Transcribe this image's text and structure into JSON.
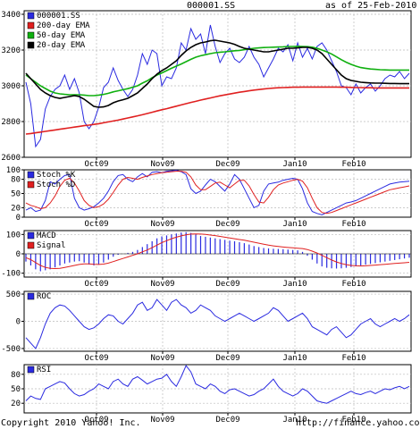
{
  "header": {
    "symbol": "000001.SS",
    "as_of": "as of 25-Feb-2010"
  },
  "footer": {
    "copyright": "Copyright 2010 Yahoo! Inc.",
    "url": "http://finance.yahoo.com/"
  },
  "colors": {
    "price": "#2a2ae0",
    "ema200": "#e02020",
    "ema50": "#10b010",
    "ema20": "#000000",
    "stoch_k": "#2a2ae0",
    "stoch_d": "#e02020",
    "macd": "#2a2ae0",
    "signal": "#e02020",
    "roc": "#2a2ae0",
    "rsi": "#2a2ae0",
    "grid": "#bbbbbb"
  },
  "chart_data": [
    {
      "type": "line",
      "panel": "price",
      "x_tick_labels": [
        "Oct09",
        "Nov09",
        "Dec09",
        "Jan10",
        "Feb10"
      ],
      "y_ticks": [
        2600,
        2800,
        3000,
        3200,
        3400
      ],
      "ylim": [
        2600,
        3420
      ],
      "series": [
        {
          "name": "000001.SS",
          "color_key": "price",
          "values": [
            3020,
            2900,
            2660,
            2700,
            2870,
            2940,
            2980,
            3000,
            3060,
            2980,
            3040,
            2960,
            2800,
            2760,
            2800,
            2880,
            2990,
            3020,
            3100,
            3030,
            2980,
            2940,
            2980,
            3060,
            3180,
            3120,
            3200,
            3180,
            3000,
            3050,
            3040,
            3100,
            3240,
            3200,
            3320,
            3260,
            3290,
            3180,
            3340,
            3220,
            3130,
            3180,
            3210,
            3150,
            3130,
            3160,
            3220,
            3160,
            3120,
            3050,
            3100,
            3150,
            3210,
            3190,
            3230,
            3140,
            3240,
            3160,
            3210,
            3150,
            3220,
            3240,
            3200,
            3140,
            3080,
            3000,
            2990,
            2950,
            3010,
            2960,
            2990,
            3010,
            2970,
            3000,
            3040,
            3060,
            3050,
            3080,
            3040,
            3070
          ]
        },
        {
          "name": "200-day EMA",
          "color_key": "ema200",
          "values": [
            2730,
            2733,
            2737,
            2741,
            2745,
            2749,
            2753,
            2757,
            2761,
            2765,
            2769,
            2773,
            2777,
            2780,
            2784,
            2788,
            2793,
            2798,
            2803,
            2808,
            2814,
            2820,
            2826,
            2832,
            2838,
            2845,
            2852,
            2859,
            2866,
            2872,
            2879,
            2886,
            2893,
            2900,
            2907,
            2913,
            2920,
            2926,
            2932,
            2938,
            2944,
            2949,
            2954,
            2959,
            2964,
            2968,
            2972,
            2976,
            2979,
            2982,
            2985,
            2987,
            2989,
            2990,
            2991,
            2992,
            2992,
            2993,
            2993,
            2993,
            2993,
            2993,
            2993,
            2993,
            2993,
            2992,
            2992,
            2991,
            2990,
            2990,
            2989,
            2989,
            2988,
            2988,
            2988,
            2988,
            2988,
            2988,
            2988,
            2988
          ]
        },
        {
          "name": "50-day EMA",
          "color_key": "ema50",
          "values": [
            3060,
            3040,
            3020,
            3000,
            2985,
            2970,
            2960,
            2955,
            2952,
            2950,
            2950,
            2950,
            2948,
            2945,
            2945,
            2948,
            2952,
            2958,
            2966,
            2972,
            2978,
            2984,
            2992,
            3000,
            3015,
            3028,
            3045,
            3060,
            3072,
            3085,
            3098,
            3110,
            3122,
            3135,
            3148,
            3160,
            3168,
            3174,
            3180,
            3185,
            3188,
            3190,
            3193,
            3196,
            3198,
            3202,
            3206,
            3210,
            3212,
            3214,
            3215,
            3216,
            3217,
            3218,
            3220,
            3220,
            3221,
            3220,
            3219,
            3216,
            3210,
            3200,
            3190,
            3178,
            3162,
            3146,
            3132,
            3120,
            3110,
            3102,
            3098,
            3094,
            3092,
            3090,
            3089,
            3088,
            3088,
            3088,
            3088,
            3088
          ]
        },
        {
          "name": "20-day EMA",
          "color_key": "ema20",
          "values": [
            3070,
            3040,
            3010,
            2980,
            2960,
            2945,
            2935,
            2930,
            2935,
            2940,
            2945,
            2940,
            2925,
            2905,
            2885,
            2880,
            2882,
            2890,
            2905,
            2915,
            2922,
            2930,
            2945,
            2960,
            2985,
            3010,
            3040,
            3065,
            3085,
            3100,
            3120,
            3140,
            3170,
            3195,
            3215,
            3230,
            3240,
            3245,
            3252,
            3255,
            3250,
            3245,
            3240,
            3232,
            3220,
            3210,
            3205,
            3200,
            3195,
            3190,
            3190,
            3195,
            3200,
            3205,
            3210,
            3210,
            3212,
            3215,
            3215,
            3210,
            3200,
            3180,
            3150,
            3120,
            3090,
            3060,
            3040,
            3030,
            3025,
            3020,
            3018,
            3016,
            3015,
            3015,
            3014,
            3013,
            3013,
            3012,
            3012,
            3012
          ]
        }
      ]
    },
    {
      "type": "line",
      "panel": "stochastic",
      "x_tick_labels": [
        "Oct09",
        "Nov09",
        "Dec09",
        "Jan10",
        "Feb10"
      ],
      "y_ticks": [
        0,
        20,
        50,
        80,
        100
      ],
      "ylim": [
        0,
        100
      ],
      "series": [
        {
          "name": "Stoch %K",
          "color_key": "stoch_k",
          "values": [
            15,
            20,
            12,
            15,
            35,
            75,
            70,
            80,
            88,
            90,
            40,
            20,
            15,
            18,
            22,
            30,
            40,
            55,
            75,
            88,
            90,
            80,
            75,
            85,
            92,
            85,
            95,
            96,
            94,
            97,
            98,
            99,
            96,
            90,
            60,
            50,
            55,
            68,
            80,
            75,
            65,
            55,
            70,
            90,
            80,
            60,
            40,
            20,
            25,
            55,
            70,
            72,
            74,
            78,
            80,
            82,
            80,
            60,
            30,
            12,
            8,
            5,
            10,
            15,
            20,
            25,
            30,
            32,
            35,
            40,
            45,
            50,
            55,
            60,
            65,
            70,
            72,
            74,
            75,
            76
          ]
        },
        {
          "name": "Stoch %D",
          "color_key": "stoch_d",
          "values": [
            30,
            25,
            22,
            18,
            20,
            30,
            45,
            65,
            78,
            82,
            72,
            55,
            35,
            25,
            20,
            22,
            28,
            38,
            52,
            68,
            80,
            84,
            82,
            80,
            84,
            87,
            90,
            92,
            94,
            95,
            96,
            97,
            97,
            95,
            85,
            68,
            58,
            58,
            65,
            72,
            74,
            68,
            62,
            70,
            78,
            78,
            66,
            48,
            32,
            30,
            42,
            58,
            68,
            72,
            75,
            78,
            80,
            76,
            62,
            40,
            20,
            10,
            8,
            10,
            14,
            18,
            22,
            26,
            30,
            34,
            38,
            42,
            46,
            50,
            54,
            58,
            60,
            62,
            64,
            66
          ]
        }
      ]
    },
    {
      "type": "line",
      "panel": "macd",
      "y_ticks": [
        -100,
        0,
        100
      ],
      "ylim": [
        -120,
        120
      ],
      "series": [
        {
          "name": "MACD",
          "color_key": "macd",
          "values": [
            -40,
            -60,
            -80,
            -90,
            -85,
            -80,
            -70,
            -60,
            -50,
            -45,
            -40,
            -38,
            -45,
            -55,
            -60,
            -55,
            -45,
            -30,
            -15,
            -5,
            0,
            5,
            10,
            20,
            35,
            50,
            65,
            80,
            90,
            95,
            100,
            105,
            110,
            112,
            108,
            100,
            92,
            88,
            84,
            80,
            76,
            72,
            68,
            65,
            60,
            55,
            48,
            40,
            35,
            30,
            28,
            26,
            25,
            24,
            22,
            20,
            18,
            10,
            -10,
            -30,
            -50,
            -65,
            -72,
            -75,
            -76,
            -75,
            -72,
            -68,
            -64,
            -60,
            -56,
            -52,
            -48,
            -44,
            -40,
            -36,
            -32,
            -28,
            -24,
            -20
          ]
        },
        {
          "name": "Signal",
          "color_key": "signal",
          "values": [
            -20,
            -30,
            -45,
            -60,
            -70,
            -75,
            -76,
            -75,
            -70,
            -65,
            -60,
            -55,
            -52,
            -52,
            -54,
            -55,
            -53,
            -48,
            -40,
            -32,
            -24,
            -16,
            -8,
            0,
            10,
            20,
            32,
            45,
            58,
            68,
            78,
            86,
            93,
            98,
            102,
            103,
            102,
            100,
            97,
            94,
            90,
            86,
            82,
            78,
            74,
            70,
            65,
            60,
            55,
            50,
            45,
            41,
            38,
            35,
            33,
            31,
            29,
            27,
            22,
            14,
            4,
            -8,
            -20,
            -32,
            -42,
            -50,
            -56,
            -60,
            -62,
            -63,
            -62,
            -60,
            -58,
            -56,
            -54,
            -52,
            -50,
            -48,
            -46,
            -44
          ]
        }
      ]
    },
    {
      "type": "line",
      "panel": "roc",
      "y_ticks": [
        -500,
        0,
        500
      ],
      "ylim": [
        -550,
        550
      ],
      "series": [
        {
          "name": "ROC",
          "color_key": "roc",
          "values": [
            -300,
            -400,
            -500,
            -300,
            -50,
            150,
            250,
            300,
            280,
            200,
            100,
            0,
            -100,
            -150,
            -120,
            -50,
            50,
            120,
            100,
            0,
            -50,
            50,
            150,
            300,
            350,
            200,
            250,
            400,
            300,
            200,
            350,
            400,
            300,
            250,
            150,
            200,
            300,
            250,
            200,
            100,
            50,
            0,
            50,
            100,
            150,
            100,
            50,
            0,
            50,
            100,
            150,
            250,
            200,
            100,
            0,
            50,
            100,
            150,
            50,
            -100,
            -150,
            -200,
            -250,
            -150,
            -100,
            -200,
            -300,
            -250,
            -150,
            -50,
            0,
            50,
            -50,
            -100,
            -50,
            0,
            50,
            0,
            50,
            120
          ]
        }
      ]
    },
    {
      "type": "line",
      "panel": "rsi",
      "y_ticks": [
        20,
        50,
        80
      ],
      "ylim": [
        0,
        100
      ],
      "series": [
        {
          "name": "RSI",
          "color_key": "rsi",
          "values": [
            25,
            35,
            30,
            28,
            50,
            55,
            60,
            65,
            62,
            50,
            40,
            35,
            38,
            45,
            50,
            60,
            55,
            50,
            65,
            70,
            60,
            55,
            70,
            75,
            68,
            60,
            65,
            70,
            72,
            80,
            65,
            55,
            75,
            98,
            85,
            60,
            55,
            50,
            60,
            55,
            45,
            40,
            48,
            50,
            45,
            40,
            35,
            38,
            45,
            50,
            60,
            70,
            55,
            45,
            40,
            35,
            40,
            50,
            45,
            35,
            25,
            22,
            20,
            25,
            30,
            35,
            40,
            45,
            40,
            38,
            42,
            45,
            40,
            45,
            50,
            48,
            52,
            55,
            50,
            55
          ]
        }
      ]
    }
  ],
  "panels": [
    {
      "id": "price",
      "legend": [
        "000001.SS",
        "200-day EMA",
        "50-day EMA",
        "20-day EMA"
      ],
      "tick_labels": [
        "3400",
        "3200",
        "3000",
        "2800",
        "2600"
      ],
      "month_labels": [
        "Oct09",
        "Nov09",
        "Dec09",
        "Jan10",
        "Feb10"
      ]
    },
    {
      "id": "stochastic",
      "legend": [
        "Stoch %K",
        "Stoch %D"
      ],
      "tick_labels": [
        "100",
        "80",
        "50",
        "20",
        "0"
      ],
      "month_labels": [
        "Oct09",
        "Nov09",
        "Dec09",
        "Jan10",
        "Feb10"
      ]
    },
    {
      "id": "macd",
      "legend": [
        "MACD",
        "Signal"
      ],
      "tick_labels": [
        "100",
        "0",
        "-100"
      ],
      "month_labels": [
        "Oct09",
        "Nov09",
        "Dec09",
        "Jan10",
        "Feb10"
      ]
    },
    {
      "id": "roc",
      "legend": [
        "ROC"
      ],
      "tick_labels": [
        "500",
        "0",
        "-500"
      ],
      "month_labels": [
        "Oct09",
        "Nov09",
        "Dec09",
        "Jan10",
        "Feb10"
      ]
    },
    {
      "id": "rsi",
      "legend": [
        "RSI"
      ],
      "tick_labels": [
        "80",
        "50",
        "20"
      ],
      "month_labels": [
        "Oct09",
        "Nov09",
        "Dec09",
        "Jan10",
        "Feb10"
      ]
    }
  ]
}
